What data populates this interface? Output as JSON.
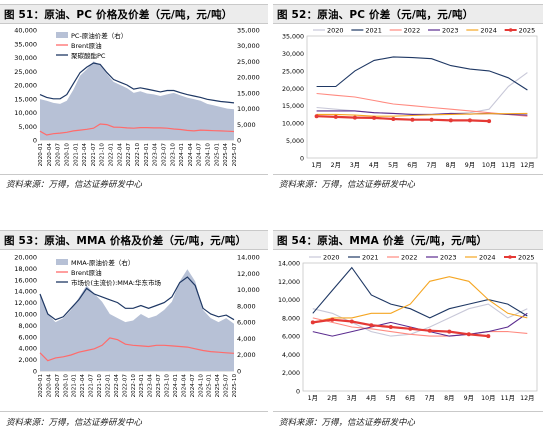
{
  "source_note": "资料来源：万得，信达证券研发中心",
  "colors": {
    "area_gray": "#b7c1d6",
    "red_line": "#ff6b6b",
    "navy": "#1f3864"
  },
  "chart_data": [
    {
      "id": "fig51",
      "type": "area",
      "title": "图 51：原油、PC 价格及价差（元/吨，元/吨）",
      "legend": [
        "PC-原油价差（右）",
        "Brent原油",
        "聚碳酸酯PC"
      ],
      "legend_position": "top-left",
      "y_left": {
        "ticks": [
          0,
          5000,
          10000,
          15000,
          20000,
          25000,
          30000,
          35000,
          40000
        ],
        "range": [
          0,
          40000
        ]
      },
      "y_right": {
        "ticks": [
          0,
          5000,
          10000,
          15000,
          20000,
          25000,
          30000,
          35000
        ],
        "range": [
          0,
          35000
        ]
      },
      "x_labels": [
        "2020-01",
        "2020-04",
        "2020-07",
        "2020-10",
        "2021-01",
        "2021-04",
        "2021-07",
        "2021-10",
        "2022-01",
        "2022-04",
        "2022-07",
        "2022-10",
        "2023-01",
        "2023-04",
        "2023-07",
        "2023-10",
        "2024-01",
        "2024-04",
        "2024-07",
        "2024-10",
        "2025-01",
        "2025-04",
        "2025-07"
      ],
      "series": [
        {
          "name": "PC-原油价差（右）",
          "axis": "right",
          "style": "area",
          "values": [
            13000,
            12500,
            11800,
            11500,
            12500,
            16000,
            20500,
            22500,
            25000,
            24000,
            21000,
            18500,
            17500,
            16500,
            15000,
            15500,
            14800,
            14500,
            14000,
            14500,
            15000,
            14200,
            13500,
            13000,
            12500,
            11500,
            11000,
            10500,
            10000,
            9800
          ]
        },
        {
          "name": "Brent原油",
          "axis": "left",
          "style": "line",
          "values": [
            3200,
            1800,
            2300,
            2500,
            2800,
            3300,
            3600,
            3900,
            4300,
            5800,
            5600,
            4700,
            4600,
            4400,
            4300,
            4500,
            4500,
            4400,
            4400,
            4300,
            4000,
            3800,
            3500,
            3300,
            3600,
            3500,
            3400,
            3300,
            3200,
            3100
          ]
        },
        {
          "name": "聚碳酸酯PC",
          "axis": "left",
          "style": "line",
          "values": [
            16500,
            15500,
            15000,
            15000,
            16500,
            20500,
            24500,
            26500,
            28000,
            27500,
            24500,
            22000,
            21000,
            20000,
            18500,
            19000,
            18500,
            18000,
            17500,
            18000,
            18000,
            17200,
            16500,
            16000,
            15500,
            14800,
            14400,
            14000,
            13800,
            13500
          ]
        }
      ]
    },
    {
      "id": "fig52",
      "type": "line",
      "title": "图 52：原油、PC 价差（元/吨，元/吨）",
      "legend": [
        "2020",
        "2021",
        "2022",
        "2023",
        "2024",
        "2025"
      ],
      "legend_position": "top",
      "y_ticks": [
        0,
        5000,
        10000,
        15000,
        20000,
        25000,
        30000,
        35000
      ],
      "range": [
        0,
        35000
      ],
      "x_labels": [
        "1月",
        "2月",
        "3月",
        "4月",
        "5月",
        "6月",
        "7月",
        "8月",
        "9月",
        "10月",
        "11月",
        "12月"
      ],
      "series": [
        {
          "name": "2020",
          "color": "#c8c8d8",
          "values": [
            14500,
            14000,
            13500,
            13000,
            12800,
            12500,
            12500,
            12800,
            13000,
            14000,
            20500,
            24500
          ]
        },
        {
          "name": "2021",
          "color": "#1f3864",
          "values": [
            20500,
            20500,
            25000,
            28000,
            29000,
            28800,
            28500,
            26500,
            25500,
            25000,
            23000,
            19500
          ]
        },
        {
          "name": "2022",
          "color": "#ff8a80",
          "values": [
            18500,
            18000,
            17500,
            16500,
            15500,
            15000,
            14500,
            14000,
            13500,
            13000,
            12500,
            12000
          ]
        },
        {
          "name": "2023",
          "color": "#5b2c8f",
          "values": [
            13500,
            13500,
            13500,
            13000,
            12800,
            12500,
            12500,
            12800,
            12600,
            12800,
            12500,
            12300
          ]
        },
        {
          "name": "2024",
          "color": "#f5a623",
          "values": [
            12500,
            12500,
            12300,
            12000,
            12000,
            12200,
            12400,
            12500,
            12600,
            12700,
            12700,
            12800
          ]
        },
        {
          "name": "2025",
          "color": "#e53935",
          "values": [
            12000,
            11800,
            11600,
            11500,
            11200,
            11000,
            11000,
            10800,
            10800,
            10600,
            null,
            null
          ]
        }
      ]
    },
    {
      "id": "fig53",
      "type": "area",
      "title": "图 53：原油、MMA 价格及价差（元/吨，元/吨）",
      "legend": [
        "MMA-原油价差（右）",
        "Brent原油",
        "市场价(主流价):MMA:华东市场"
      ],
      "legend_position": "top-left",
      "y_left": {
        "ticks": [
          0,
          2000,
          4000,
          6000,
          8000,
          10000,
          12000,
          14000,
          16000,
          18000,
          20000
        ],
        "range": [
          0,
          20000
        ]
      },
      "y_right": {
        "ticks": [
          0,
          2000,
          4000,
          6000,
          8000,
          10000,
          12000,
          14000
        ],
        "range": [
          0,
          14000
        ]
      },
      "x_labels": [
        "2020-01",
        "2020-04",
        "2020-07",
        "2020-10",
        "2021-01",
        "2021-04",
        "2021-07",
        "2021-10",
        "2022-01",
        "2022-04",
        "2022-07",
        "2022-10",
        "2023-01",
        "2023-04",
        "2023-07",
        "2023-10",
        "2024-01",
        "2024-04",
        "2024-07",
        "2024-10",
        "2025-01",
        "2025-04",
        "2025-07",
        "2025-10"
      ],
      "series": [
        {
          "name": "MMA-原油价差（右）",
          "axis": "right",
          "style": "area",
          "values": [
            9500,
            7000,
            6000,
            6500,
            7500,
            9000,
            10500,
            9500,
            8500,
            7000,
            6500,
            6000,
            6200,
            7000,
            6500,
            6800,
            7500,
            8500,
            11000,
            12500,
            11000,
            7500,
            6500,
            6000,
            6500,
            5800
          ]
        },
        {
          "name": "Brent原油",
          "axis": "left",
          "style": "line",
          "values": [
            3200,
            1800,
            2300,
            2500,
            2800,
            3300,
            3600,
            3900,
            4500,
            5800,
            5500,
            4700,
            4500,
            4400,
            4300,
            4500,
            4500,
            4400,
            4300,
            4200,
            3900,
            3600,
            3400,
            3300,
            3200,
            3100
          ]
        },
        {
          "name": "市场价(主流价):MMA:华东市场",
          "axis": "left",
          "style": "line",
          "values": [
            13500,
            10000,
            9000,
            9500,
            11000,
            12500,
            14500,
            13500,
            13000,
            12500,
            12000,
            11000,
            11000,
            11500,
            11000,
            11500,
            12000,
            13000,
            15500,
            16500,
            15000,
            11000,
            10000,
            9500,
            9800,
            9000
          ]
        }
      ]
    },
    {
      "id": "fig54",
      "type": "line",
      "title": "图 54：原油、MMA 价差（元/吨，元/吨）",
      "legend": [
        "2020",
        "2021",
        "2022",
        "2023",
        "2024",
        "2025"
      ],
      "legend_position": "top",
      "y_ticks": [
        0,
        2000,
        4000,
        6000,
        8000,
        10000,
        12000,
        14000
      ],
      "range": [
        0,
        14000
      ],
      "x_labels": [
        "1月",
        "2月",
        "3月",
        "4月",
        "5月",
        "6月",
        "7月",
        "8月",
        "9月",
        "10月",
        "11月",
        "12月"
      ],
      "series": [
        {
          "name": "2020",
          "color": "#c8c8d8",
          "values": [
            9000,
            8500,
            7500,
            6500,
            6000,
            6200,
            7000,
            8000,
            9000,
            9500,
            8000,
            9000
          ]
        },
        {
          "name": "2021",
          "color": "#1f3864",
          "values": [
            8500,
            11000,
            13500,
            10500,
            9500,
            9000,
            8000,
            9000,
            9500,
            10000,
            9500,
            8200
          ]
        },
        {
          "name": "2022",
          "color": "#ff8a80",
          "values": [
            8000,
            7500,
            7000,
            6800,
            6500,
            6200,
            6000,
            6000,
            6200,
            6500,
            6500,
            6300
          ]
        },
        {
          "name": "2023",
          "color": "#5b2c8f",
          "values": [
            6500,
            6000,
            6500,
            7000,
            7500,
            7000,
            6500,
            6000,
            6200,
            6500,
            7000,
            8500
          ]
        },
        {
          "name": "2024",
          "color": "#f5a623",
          "values": [
            7500,
            8000,
            8000,
            8500,
            8500,
            9500,
            12000,
            12500,
            12000,
            10000,
            8500,
            8000
          ]
        },
        {
          "name": "2025",
          "color": "#e53935",
          "values": [
            7500,
            7800,
            7600,
            7200,
            7000,
            6800,
            6600,
            6500,
            6200,
            6000,
            null,
            null
          ]
        }
      ]
    }
  ]
}
